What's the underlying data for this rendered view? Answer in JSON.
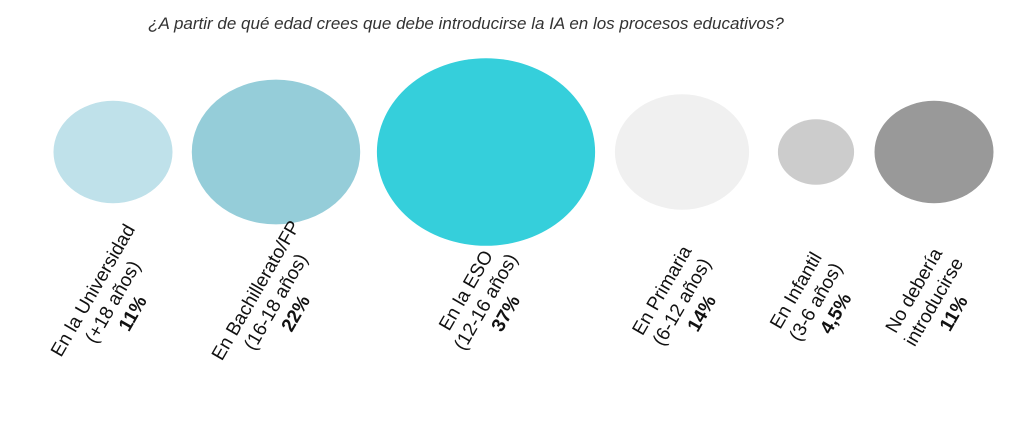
{
  "chart_data": {
    "type": "bubble",
    "title": "¿A partir de qué edad crees que debe introducirse la IA en los procesos educativos?",
    "categories": [
      [
        "En la Universidad",
        "(+18 años)"
      ],
      [
        "En Bachillerato/FP",
        "(16-18 años)"
      ],
      [
        "En la ESO",
        "(12-16 años)"
      ],
      [
        "En Primaria",
        "(6-12 años)"
      ],
      [
        "En Infantil",
        "(3-6 años)"
      ],
      [
        "No debería",
        "introducirse"
      ]
    ],
    "values": [
      11,
      22,
      37,
      14,
      4.5,
      11
    ],
    "value_labels": [
      "11%",
      "22%",
      "37%",
      "14%",
      "4,5%",
      "11%"
    ],
    "colors": [
      "#bfe1ea",
      "#95cdd9",
      "#35cfdb",
      "#f0f0f0",
      "#cccccc",
      "#999999"
    ],
    "unit": "%",
    "grid": false,
    "legend": "none"
  }
}
